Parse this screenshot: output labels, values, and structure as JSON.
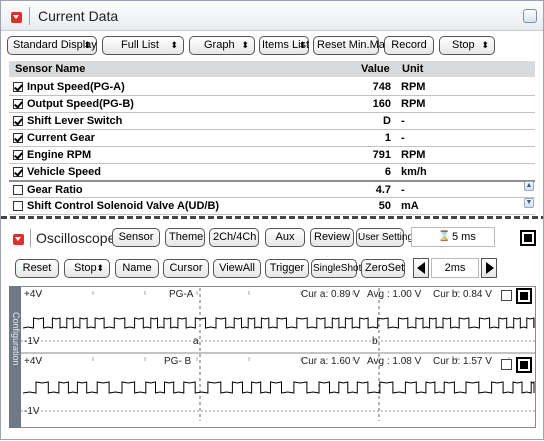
{
  "current_data": {
    "title": "Current Data",
    "toolbar": [
      {
        "label": "Standard Display",
        "has_arrow": true
      },
      {
        "label": "Full List",
        "has_arrow": true
      },
      {
        "label": "Graph",
        "has_arrow": true
      },
      {
        "label": "Items List",
        "has_arrow": true
      },
      {
        "label": "Reset Min.Max.",
        "has_arrow": false
      },
      {
        "label": "Record",
        "has_arrow": false
      },
      {
        "label": "Stop",
        "has_arrow": true
      }
    ],
    "columns": {
      "name": "Sensor Name",
      "value": "Value",
      "unit": "Unit"
    },
    "rows": [
      {
        "name": "Input Speed(PG-A)",
        "value": "748",
        "unit": "RPM",
        "checked": true
      },
      {
        "name": "Output Speed(PG-B)",
        "value": "160",
        "unit": "RPM",
        "checked": true
      },
      {
        "name": "Shift Lever Switch",
        "value": "D",
        "unit": "-",
        "checked": true
      },
      {
        "name": "Current Gear",
        "value": "1",
        "unit": "-",
        "checked": true
      },
      {
        "name": "Engine RPM",
        "value": "791",
        "unit": "RPM",
        "checked": true
      },
      {
        "name": "Vehicle Speed",
        "value": "6",
        "unit": "km/h",
        "checked": true
      },
      {
        "name": "Gear Ratio",
        "value": "4.7",
        "unit": "-",
        "checked": false
      },
      {
        "name": "Shift Control Solenoid Valve A(UD/B)",
        "value": "50",
        "unit": "mA",
        "checked": false
      }
    ]
  },
  "oscilloscope": {
    "title": "Oscilloscope",
    "top_buttons": [
      "Sensor",
      "Theme",
      "2Ch/4Ch",
      "Aux",
      "Review",
      "User Setting"
    ],
    "timebase": "5 ms",
    "row2_buttons": [
      {
        "label": "Reset",
        "has_arrow": false
      },
      {
        "label": "Stop",
        "has_arrow": true
      },
      {
        "label": "Name",
        "has_arrow": false
      },
      {
        "label": "Cursor",
        "has_arrow": false
      },
      {
        "label": "ViewAll",
        "has_arrow": false
      },
      {
        "label": "Trigger",
        "has_arrow": false
      },
      {
        "label": "SingleShot",
        "has_arrow": false
      },
      {
        "label": "ZeroSet",
        "has_arrow": false
      }
    ],
    "time_div": "2ms",
    "config_tab": "Configuration",
    "channels": [
      {
        "top": "+4V",
        "bottom": "-1V",
        "name": "PG-A",
        "cur_a": "Cur a: 0.89 V",
        "avg": "Avg : 1.00 V",
        "cur_b": "Cur b: 0.84 V",
        "cursor_a": "a",
        "cursor_b": "b"
      },
      {
        "top": "+4V",
        "bottom": "-1V",
        "name": "PG- B",
        "cur_a": "Cur a: 1.60 V",
        "avg": "Avg : 1.08 V",
        "cur_b": "Cur b: 1.57 V",
        "cursor_a": "",
        "cursor_b": ""
      }
    ]
  }
}
